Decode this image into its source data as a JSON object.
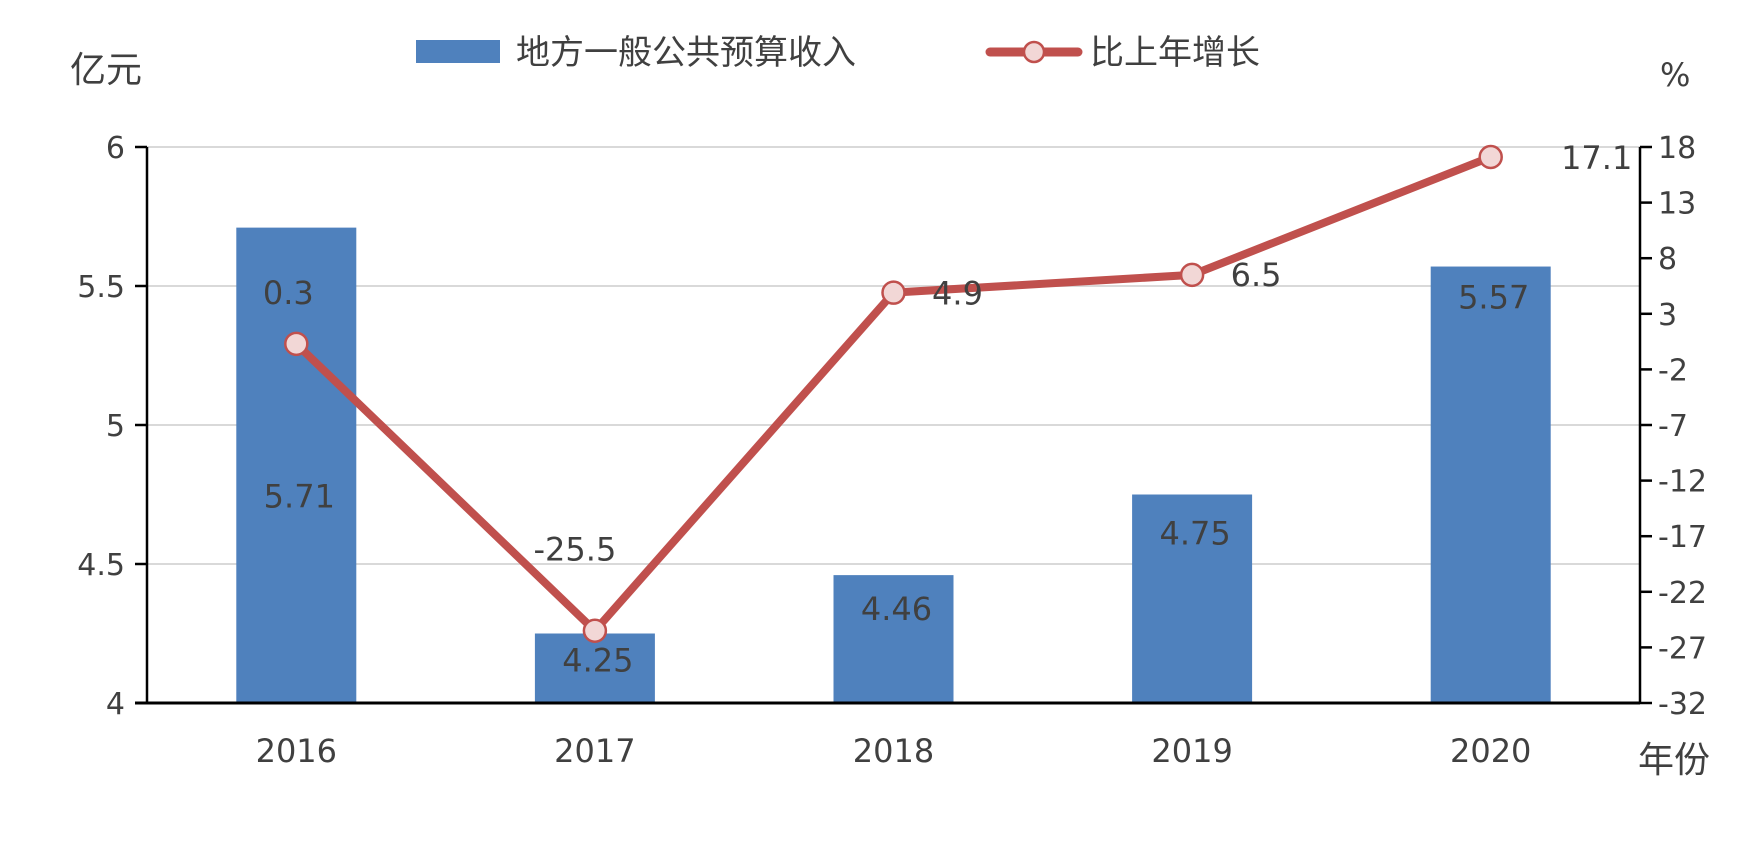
{
  "chart_data": {
    "type": "bar+line",
    "categories": [
      "2016",
      "2017",
      "2018",
      "2019",
      "2020"
    ],
    "series": [
      {
        "name": "地方一般公共预算收入",
        "type": "bar",
        "axis": "left",
        "values": [
          5.71,
          4.25,
          4.46,
          4.75,
          5.57
        ],
        "labels": [
          "5.71",
          "4.25",
          "4.46",
          "4.75",
          "5.57"
        ]
      },
      {
        "name": "比上年增长",
        "type": "line",
        "axis": "right",
        "values": [
          0.3,
          -25.5,
          4.9,
          6.5,
          17.1
        ],
        "labels": [
          "0.3",
          "-25.5",
          "4.9",
          "6.5",
          "17.1"
        ]
      }
    ],
    "y_left": {
      "unit": "亿元",
      "range": [
        4,
        6
      ],
      "ticks": [
        "4",
        "4.5",
        "5",
        "5.5",
        "6"
      ]
    },
    "y_right": {
      "unit": "%",
      "range": [
        -32,
        18
      ],
      "ticks": [
        "-32",
        "-27",
        "-22",
        "-17",
        "-12",
        "-7",
        "-2",
        "3",
        "8",
        "13",
        "18"
      ]
    },
    "x_unit": "年份",
    "grid": true,
    "legend_position": "top",
    "colors": {
      "bar": "#4f81bd",
      "line": "#c0504d",
      "marker_fill": "#f2d7d6",
      "grid": "#d9d9d9",
      "axis": "#000000",
      "text": "#404040"
    }
  }
}
